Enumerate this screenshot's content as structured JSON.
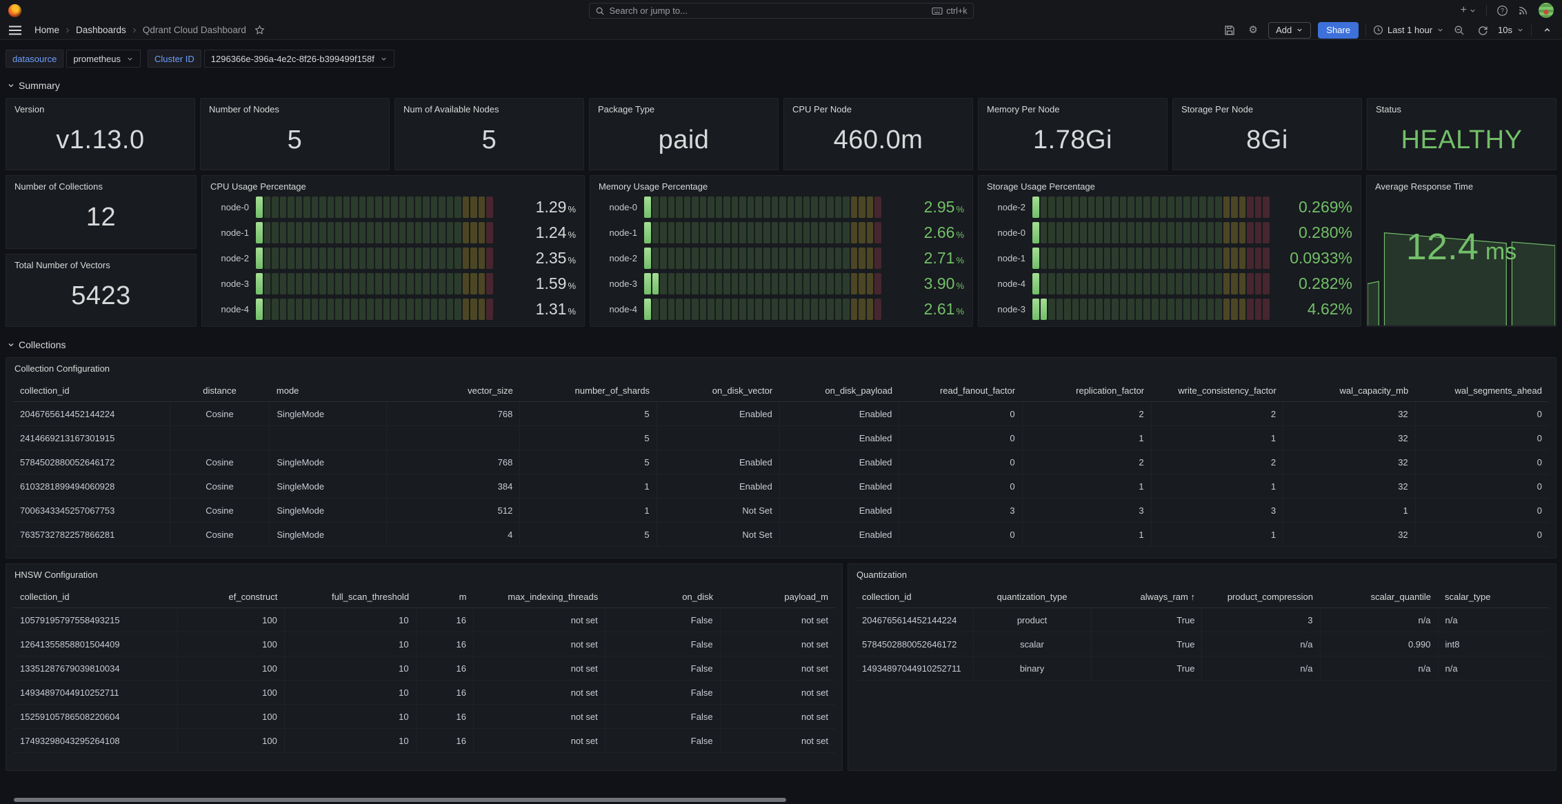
{
  "nav": {
    "search_placeholder": "Search or jump to...",
    "search_shortcut": "ctrl+k"
  },
  "breadcrumb": {
    "items": [
      "Home",
      "Dashboards",
      "Qdrant Cloud Dashboard"
    ]
  },
  "toolbar": {
    "add_label": "Add",
    "share_label": "Share",
    "time_range": "Last 1 hour",
    "refresh_interval": "10s"
  },
  "variables": {
    "datasource_label": "datasource",
    "datasource_value": "prometheus",
    "cluster_label": "Cluster ID",
    "cluster_value": "1296366e-396a-4e2c-8f26-b399499f158f"
  },
  "sections": {
    "summary": "Summary",
    "collections": "Collections"
  },
  "colors": {
    "green": "#73BF69",
    "share_blue": "#3D71D9",
    "link_blue": "#6E9FFF"
  },
  "stats": [
    {
      "title": "Version",
      "value": "v1.13.0"
    },
    {
      "title": "Number of Nodes",
      "value": "5"
    },
    {
      "title": "Num of Available Nodes",
      "value": "5"
    },
    {
      "title": "Package Type",
      "value": "paid"
    },
    {
      "title": "CPU Per Node",
      "value": "460.0m"
    },
    {
      "title": "Memory Per Node",
      "value": "1.78Gi"
    },
    {
      "title": "Storage Per Node",
      "value": "8Gi"
    },
    {
      "title": "Status",
      "value": "HEALTHY",
      "color": "#73BF69"
    }
  ],
  "left_stats": [
    {
      "title": "Number of Collections",
      "value": "12"
    },
    {
      "title": "Total Number of Vectors",
      "value": "5423"
    }
  ],
  "gauges": [
    {
      "title": "CPU Usage Percentage",
      "value_color": "#D8D9DA",
      "suffix": "%",
      "cells": {
        "total": 30,
        "yellow": 3,
        "red": 1
      },
      "rows": [
        {
          "label": "node-0",
          "value": "1.29",
          "lit": 1
        },
        {
          "label": "node-1",
          "value": "1.24",
          "lit": 1
        },
        {
          "label": "node-2",
          "value": "2.35",
          "lit": 1
        },
        {
          "label": "node-3",
          "value": "1.59",
          "lit": 1
        },
        {
          "label": "node-4",
          "value": "1.31",
          "lit": 1
        }
      ]
    },
    {
      "title": "Memory Usage Percentage",
      "value_color": "#73BF69",
      "suffix": "%",
      "cells": {
        "total": 30,
        "yellow": 3,
        "red": 1
      },
      "rows": [
        {
          "label": "node-0",
          "value": "2.95",
          "lit": 1
        },
        {
          "label": "node-1",
          "value": "2.66",
          "lit": 1
        },
        {
          "label": "node-2",
          "value": "2.71",
          "lit": 1
        },
        {
          "label": "node-3",
          "value": "3.90",
          "lit": 2
        },
        {
          "label": "node-4",
          "value": "2.61",
          "lit": 1
        }
      ]
    },
    {
      "title": "Storage Usage Percentage",
      "value_color": "#73BF69",
      "suffix": "",
      "cells": {
        "total": 30,
        "yellow": 3,
        "red": 3
      },
      "rows": [
        {
          "label": "node-2",
          "value": "0.269%",
          "lit": 1
        },
        {
          "label": "node-0",
          "value": "0.280%",
          "lit": 1
        },
        {
          "label": "node-1",
          "value": "0.0933%",
          "lit": 1
        },
        {
          "label": "node-4",
          "value": "0.282%",
          "lit": 1
        },
        {
          "label": "node-3",
          "value": "4.62%",
          "lit": 2
        }
      ]
    }
  ],
  "response_time": {
    "title": "Average Response Time",
    "value": "12.4",
    "unit": "ms",
    "color": "#73BF69",
    "areas": [
      [
        [
          0,
          100
        ],
        [
          0,
          64
        ],
        [
          6,
          62
        ],
        [
          6,
          100
        ]
      ],
      [
        [
          9,
          100
        ],
        [
          9,
          20
        ],
        [
          74,
          29
        ],
        [
          74,
          100
        ]
      ],
      [
        [
          77,
          100
        ],
        [
          77,
          28
        ],
        [
          100,
          31
        ],
        [
          100,
          100
        ]
      ]
    ]
  },
  "tables": {
    "collection_config": {
      "title": "Collection Configuration",
      "green_values": [
        "Enabled",
        "True",
        "False"
      ],
      "columns": [
        {
          "label": "collection_id",
          "align": "left",
          "width": "10.2%"
        },
        {
          "label": "distance",
          "align": "center",
          "width": "6.5%"
        },
        {
          "label": "mode",
          "align": "left",
          "width": "7.6%"
        },
        {
          "label": "vector_size",
          "align": "right",
          "width": "8.7%"
        },
        {
          "label": "number_of_shards",
          "align": "right",
          "width": "8.9%"
        },
        {
          "label": "on_disk_vector",
          "align": "right",
          "width": "8%"
        },
        {
          "label": "on_disk_payload",
          "align": "right",
          "width": "7.8%"
        },
        {
          "label": "read_fanout_factor",
          "align": "right",
          "width": "8%"
        },
        {
          "label": "replication_factor",
          "align": "right",
          "width": "8.4%"
        },
        {
          "label": "write_consistency_factor",
          "align": "right",
          "width": "8.6%"
        },
        {
          "label": "wal_capacity_mb",
          "align": "right",
          "width": "8.6%"
        },
        {
          "label": "wal_segments_ahead",
          "align": "right",
          "width": "8.7%"
        }
      ],
      "rows": [
        [
          "2046765614452144224",
          "Cosine",
          "SingleMode",
          "768",
          "5",
          "Enabled",
          "Enabled",
          "0",
          "2",
          "2",
          "32",
          "0"
        ],
        [
          "2414669213167301915",
          "",
          "",
          "",
          "5",
          "",
          "Enabled",
          "0",
          "1",
          "1",
          "32",
          "0"
        ],
        [
          "5784502880052646172",
          "Cosine",
          "SingleMode",
          "768",
          "5",
          "Enabled",
          "Enabled",
          "0",
          "2",
          "2",
          "32",
          "0"
        ],
        [
          "6103281899494060928",
          "Cosine",
          "SingleMode",
          "384",
          "1",
          "Enabled",
          "Enabled",
          "0",
          "1",
          "1",
          "32",
          "0"
        ],
        [
          "7006343345257067753",
          "Cosine",
          "SingleMode",
          "512",
          "1",
          "Not Set",
          "Enabled",
          "3",
          "3",
          "3",
          "1",
          "0"
        ],
        [
          "7635732782257866281",
          "Cosine",
          "SingleMode",
          "4",
          "5",
          "Not Set",
          "Enabled",
          "0",
          "1",
          "1",
          "32",
          "0"
        ]
      ]
    },
    "hnsw": {
      "title": "HNSW Configuration",
      "green_values": [
        "Enabled",
        "True",
        "False"
      ],
      "columns": [
        {
          "label": "collection_id",
          "align": "left",
          "width": "20%"
        },
        {
          "label": "ef_construct",
          "align": "right",
          "width": "13%"
        },
        {
          "label": "full_scan_threshold",
          "align": "right",
          "width": "16%"
        },
        {
          "label": "m",
          "align": "right",
          "width": "7%"
        },
        {
          "label": "max_indexing_threads",
          "align": "right",
          "width": "16%"
        },
        {
          "label": "on_disk",
          "align": "right",
          "width": "14%"
        },
        {
          "label": "payload_m",
          "align": "right",
          "width": "14%"
        }
      ],
      "rows": [
        [
          "10579195797558493215",
          "100",
          "10",
          "16",
          "not set",
          "False",
          "not set"
        ],
        [
          "12641355858801504409",
          "100",
          "10",
          "16",
          "not set",
          "False",
          "not set"
        ],
        [
          "13351287679039810034",
          "100",
          "10",
          "16",
          "not set",
          "False",
          "not set"
        ],
        [
          "14934897044910252711",
          "100",
          "10",
          "16",
          "not set",
          "False",
          "not set"
        ],
        [
          "15259105786508220604",
          "100",
          "10",
          "16",
          "not set",
          "False",
          "not set"
        ],
        [
          "17493298043295264108",
          "100",
          "10",
          "16",
          "not set",
          "False",
          "not set"
        ]
      ]
    },
    "quantization": {
      "title": "Quantization",
      "green_values": [
        "Enabled",
        "True",
        "False"
      ],
      "columns": [
        {
          "label": "collection_id",
          "align": "left",
          "width": "17%"
        },
        {
          "label": "quantization_type",
          "align": "center",
          "width": "17%"
        },
        {
          "label": "always_ram ↑",
          "align": "right",
          "width": "16%"
        },
        {
          "label": "product_compression",
          "align": "right",
          "width": "17%"
        },
        {
          "label": "scalar_quantile",
          "align": "right",
          "width": "17%"
        },
        {
          "label": "scalar_type",
          "align": "left",
          "width": "16%"
        }
      ],
      "rows": [
        [
          "2046765614452144224",
          "product",
          "True",
          "3",
          "n/a",
          "n/a"
        ],
        [
          "5784502880052646172",
          "scalar",
          "True",
          "n/a",
          "0.990",
          "int8"
        ],
        [
          "14934897044910252711",
          "binary",
          "True",
          "n/a",
          "n/a",
          "n/a"
        ]
      ]
    }
  }
}
